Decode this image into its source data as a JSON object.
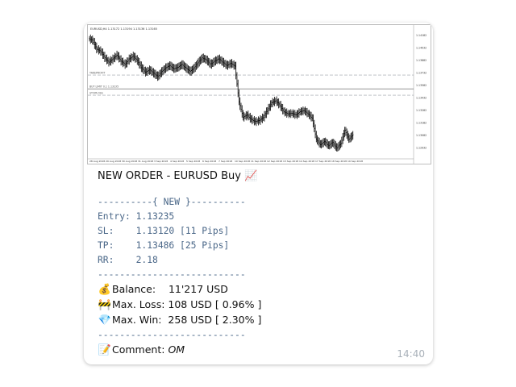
{
  "chart": {
    "header": "EURUSD,H4 1.13172 1.13194 1.13136 1.13165",
    "price_labels": [
      "1.14182",
      "1.14032",
      "1.13882",
      "1.13732",
      "1.13582",
      "1.13432",
      "1.13282",
      "1.13182",
      "1.13082",
      "1.12932"
    ],
    "time_labels": [
      "28 Aug 2018",
      "29 Aug 2018",
      "30 Aug 2018",
      "31 Aug 2018",
      "3 Sep 2018",
      "4 Sep 2018",
      "5 Sep 2018",
      "6 Sep 2018",
      "7 Sep 2018",
      "10 Sep 2018",
      "11 Sep 2018",
      "12 Sep 2018",
      "13 Sep 2018",
      "14 Sep 2018",
      "17 Sep 2018",
      "18 Sep 2018",
      "19 Sep 2018"
    ],
    "line_labels": {
      "tp": "TAKEPROFIT",
      "entry": "BUY LIMIT 0.1 1.13235",
      "sl": "STOPLOSS"
    },
    "price_series": [
      1.1415,
      1.1412,
      1.1396,
      1.1392,
      1.138,
      1.1372,
      1.1378,
      1.1385,
      1.1374,
      1.1368,
      1.1378,
      1.1383,
      1.1375,
      1.1362,
      1.1354,
      1.1358,
      1.1352,
      1.1346,
      1.1355,
      1.1362,
      1.1366,
      1.136,
      1.1363,
      1.1368,
      1.1361,
      1.1355,
      1.1362,
      1.1372,
      1.138,
      1.1376,
      1.1368,
      1.1374,
      1.1378,
      1.1372,
      1.1366,
      1.137,
      1.1365,
      1.13,
      1.1272,
      1.1276,
      1.1268,
      1.1264,
      1.1266,
      1.1272,
      1.1285,
      1.1298,
      1.1302,
      1.1294,
      1.1282,
      1.1278,
      1.1279,
      1.1276,
      1.1282,
      1.1284,
      1.1278,
      1.127,
      1.1232,
      1.1222,
      1.1228,
      1.122,
      1.1226,
      1.1216,
      1.1224,
      1.1248,
      1.1232,
      1.124
    ],
    "ylim": [
      1.1205,
      1.1425
    ],
    "levels": {
      "tp": 1.13486,
      "entry": 1.13235,
      "sl": 1.1312
    }
  },
  "message": {
    "title": "NEW ORDER - EURUSD Buy",
    "title_emoji": "📈",
    "sep_new": "----------{ NEW }----------",
    "entry": "Entry: 1.13235",
    "sl": "SL:    1.13120 [11 Pips]",
    "tp": "TP:    1.13486 [25 Pips]",
    "rr": "RR:    2.18",
    "sep": "---------------------------",
    "balance_icon": "💰",
    "balance": "Balance:    11'217 USD",
    "loss_icon": "🚧",
    "loss": "Max. Loss: 108 USD [ 0.96% ]",
    "win_icon": "💎",
    "win": "Max. Win:  258 USD [ 2.30% ]",
    "sep2": "---------------------------",
    "comment_icon": "📝",
    "comment_label": "Comment: ",
    "comment_value": "OM",
    "time": "14:40"
  }
}
